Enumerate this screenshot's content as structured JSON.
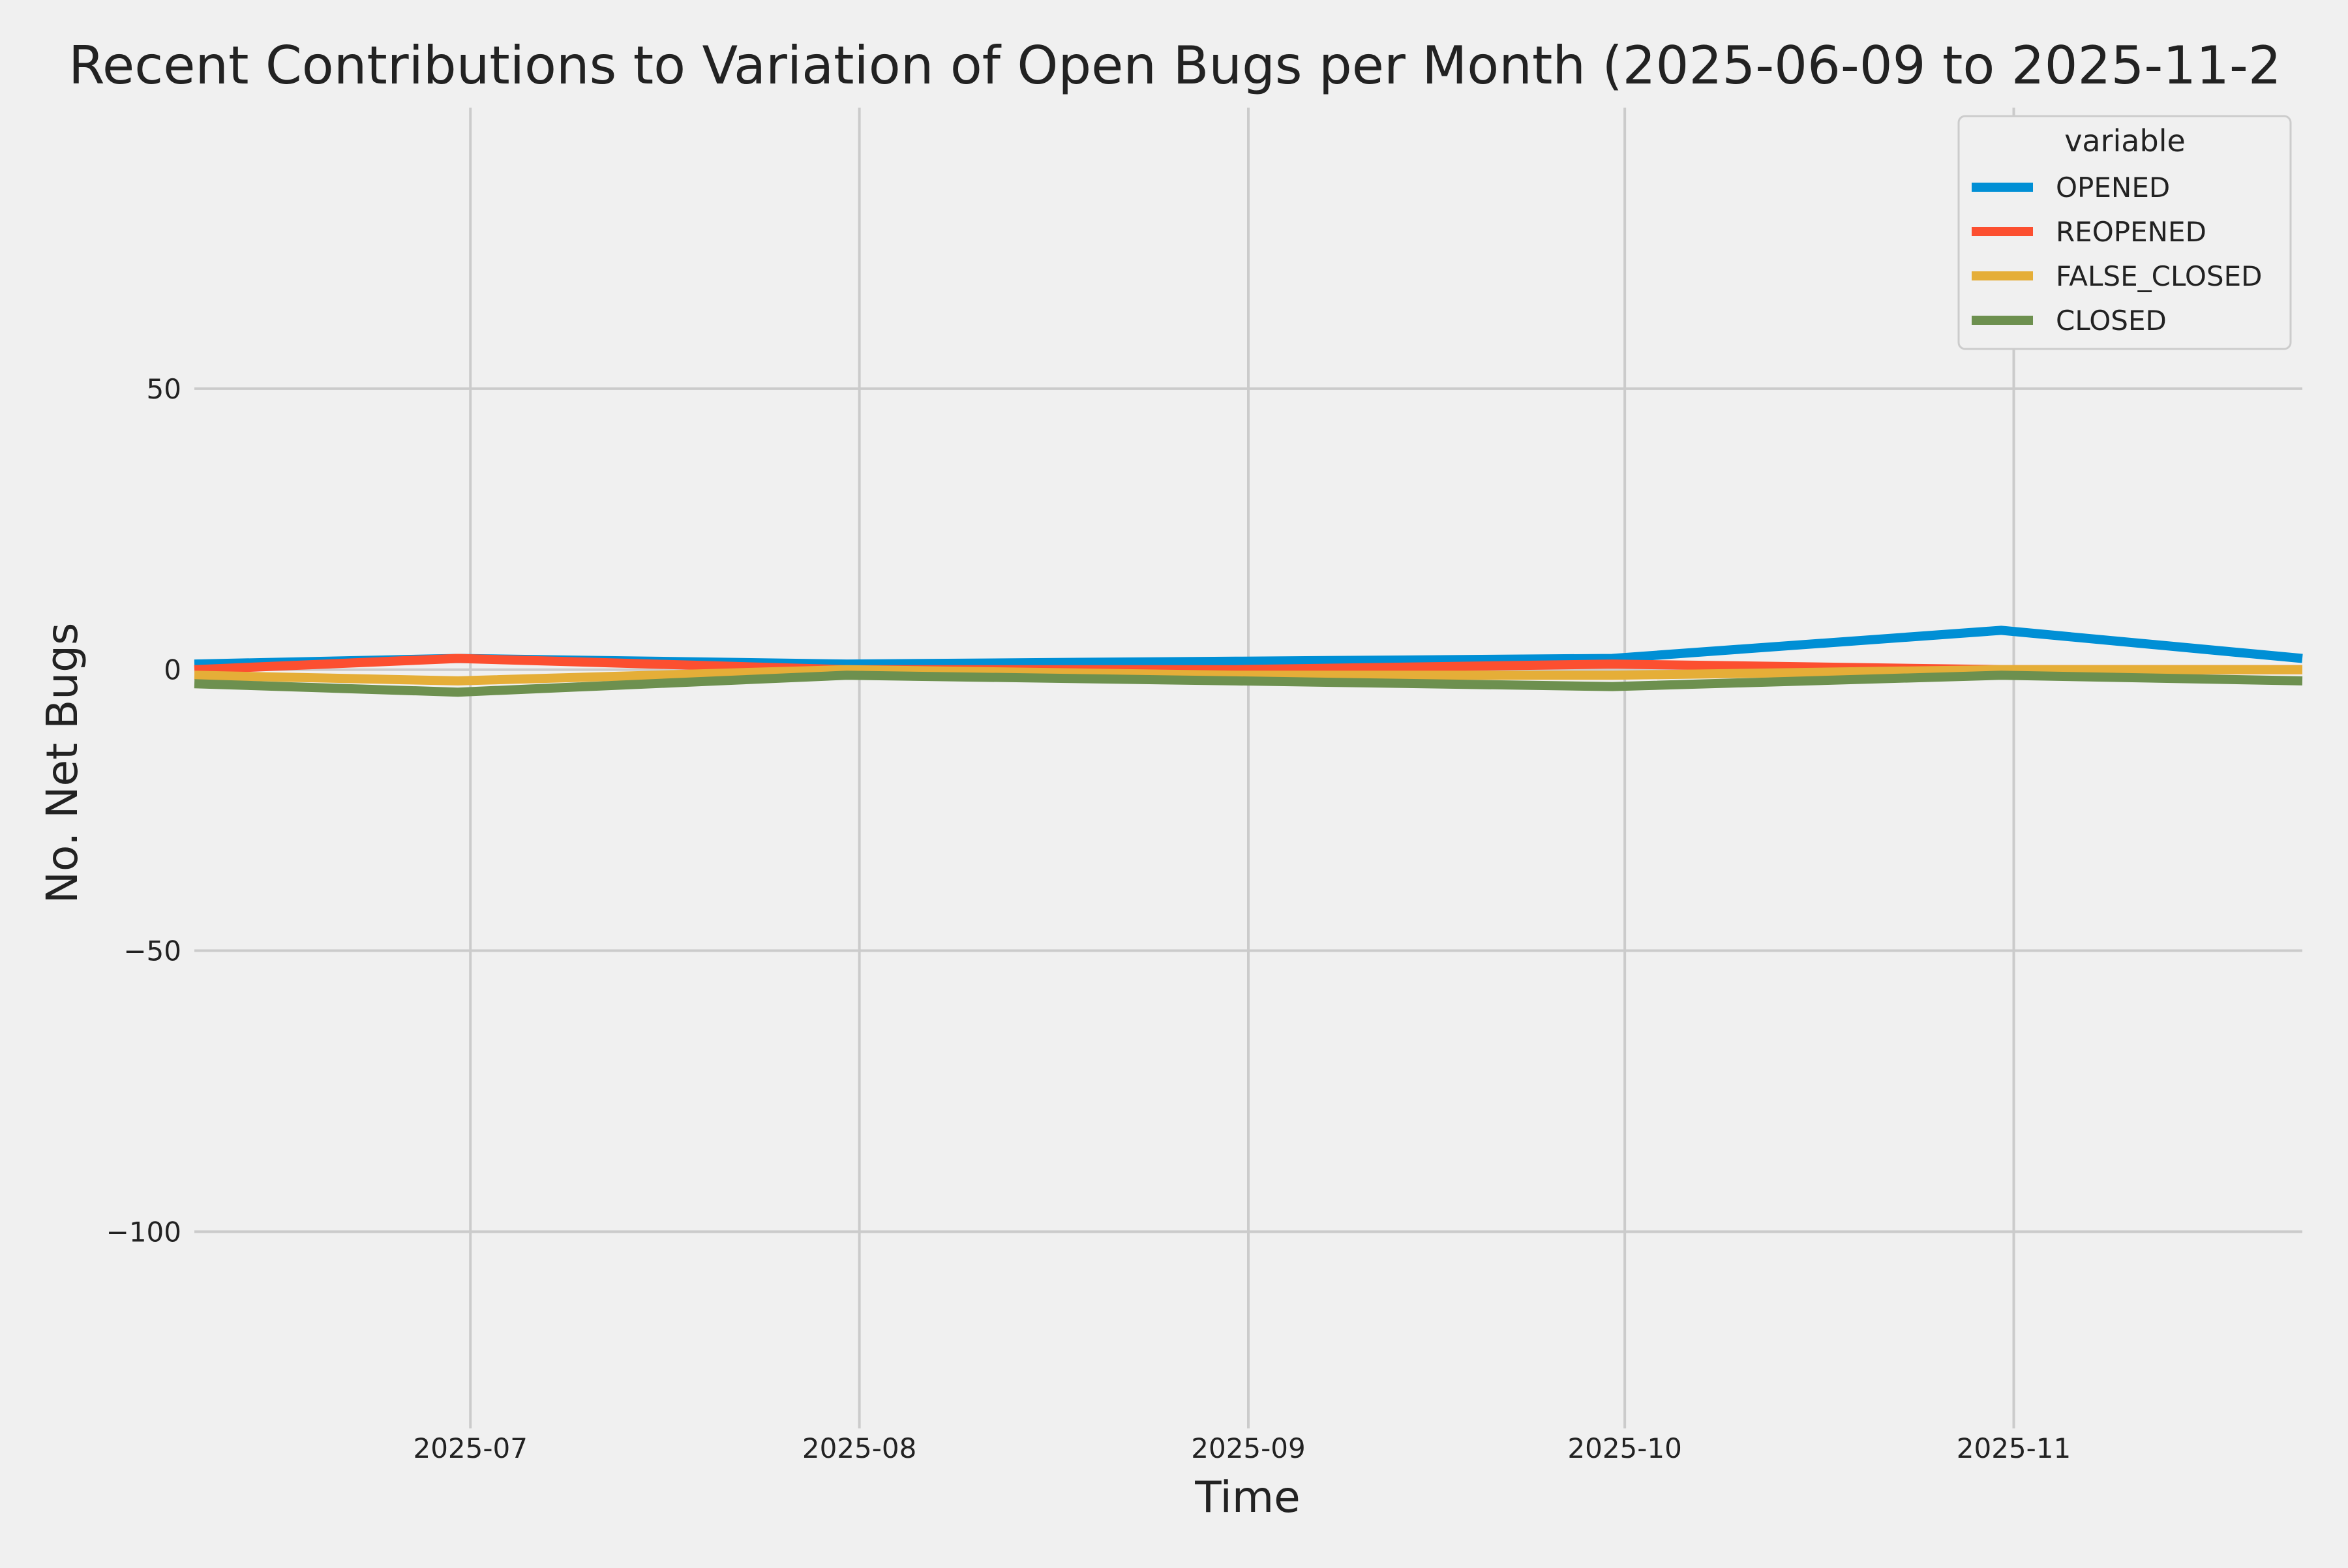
{
  "chart_data": {
    "type": "line",
    "title": "Recent Contributions to Variation of Open Bugs per Month (2025-06-09 to 2025-11-2",
    "xlabel": "Time",
    "ylabel": "No. Net Bugs",
    "x": [
      "2025-06-09",
      "2025-06-30",
      "2025-07-31",
      "2025-08-31",
      "2025-09-30",
      "2025-10-31",
      "2025-11-24"
    ],
    "xlim": [
      "2025-06-09",
      "2025-11-24"
    ],
    "ylim": [
      -135,
      100
    ],
    "x_ticks": [
      {
        "date": "2025-07-01",
        "label": "2025-07"
      },
      {
        "date": "2025-08-01",
        "label": "2025-08"
      },
      {
        "date": "2025-09-01",
        "label": "2025-09"
      },
      {
        "date": "2025-10-01",
        "label": "2025-10"
      },
      {
        "date": "2025-11-01",
        "label": "2025-11"
      }
    ],
    "y_ticks": [
      {
        "value": 50,
        "label": "50"
      },
      {
        "value": 0,
        "label": "0"
      },
      {
        "value": -50,
        "label": "−50"
      },
      {
        "value": -100,
        "label": "−100"
      }
    ],
    "grid": true,
    "legend": {
      "title": "variable",
      "placement": "top-right"
    },
    "series": [
      {
        "name": "OPENED",
        "color": "#008fd5",
        "values": [
          1,
          2,
          1,
          1.5,
          2,
          7,
          2
        ]
      },
      {
        "name": "REOPENED",
        "color": "#fc4f30",
        "values": [
          0,
          2,
          0,
          0,
          1,
          0,
          0
        ]
      },
      {
        "name": "FALSE_CLOSED",
        "color": "#e5ae38",
        "values": [
          -1,
          -2,
          0,
          -1,
          -1,
          0,
          0
        ]
      },
      {
        "name": "CLOSED",
        "color": "#6d904f",
        "values": [
          -2.5,
          -4,
          -1,
          -2,
          -3,
          -1,
          -2
        ]
      }
    ]
  }
}
